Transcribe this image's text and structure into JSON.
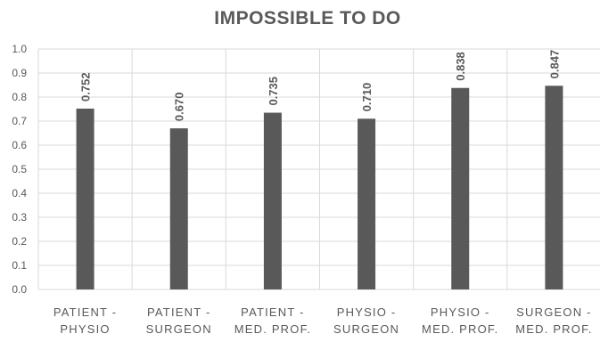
{
  "chart_data": {
    "type": "bar",
    "title": "IMPOSSIBLE TO DO",
    "xlabel": "",
    "ylabel": "",
    "categories": [
      [
        "PATIENT -",
        "PHYSIO"
      ],
      [
        "PATIENT -",
        "SURGEON"
      ],
      [
        "PATIENT -",
        "MED. PROF."
      ],
      [
        "PHYSIO -",
        "SURGEON"
      ],
      [
        "PHYSIO -",
        "MED. PROF."
      ],
      [
        "SURGEON -",
        "MED. PROF."
      ]
    ],
    "values": [
      0.752,
      0.67,
      0.735,
      0.71,
      0.838,
      0.847
    ],
    "data_labels": [
      "0.752",
      "0.670",
      "0.735",
      "0.710",
      "0.838",
      "0.847"
    ],
    "ylim": [
      0,
      1.0
    ],
    "yticks": [
      "0.0",
      "0.1",
      "0.2",
      "0.3",
      "0.4",
      "0.5",
      "0.6",
      "0.7",
      "0.8",
      "0.9",
      "1.0"
    ],
    "grid": true,
    "colors": {
      "bar": "#595959",
      "grid": "#d9d9d9",
      "text": "#595959"
    }
  }
}
